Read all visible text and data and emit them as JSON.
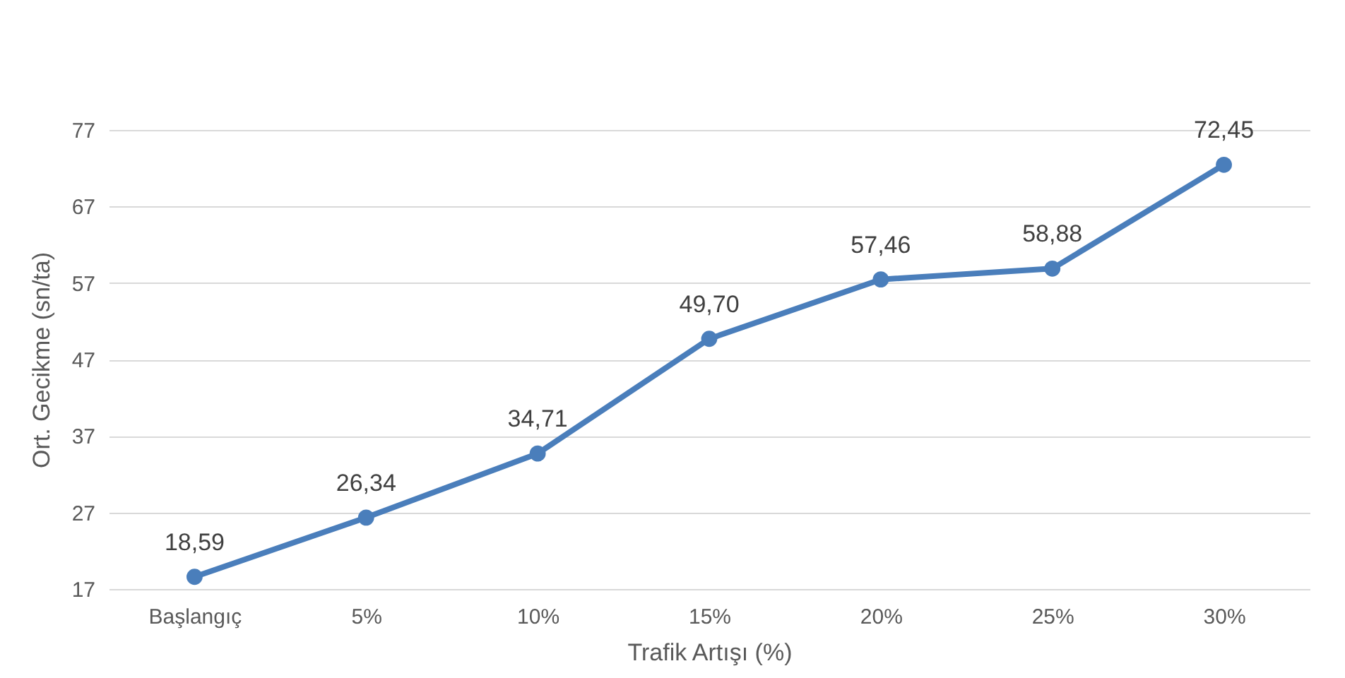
{
  "chart_data": {
    "type": "line",
    "xlabel": "Trafik Artışı (%)",
    "ylabel": "Ort. Gecikme (sn/ta)",
    "categories": [
      "Başlangıç",
      "5%",
      "10%",
      "15%",
      "20%",
      "25%",
      "30%"
    ],
    "series": [
      {
        "color": "#4a7ebb",
        "values": [
          18.59,
          26.34,
          34.71,
          49.7,
          57.46,
          58.88,
          72.45
        ],
        "value_labels": [
          "18,59",
          "26,34",
          "34,71",
          "49,70",
          "57,46",
          "58,88",
          "72,45"
        ]
      }
    ],
    "ylim": [
      17,
      77
    ],
    "yticks": [
      17,
      27,
      37,
      47,
      57,
      67,
      77
    ],
    "grid": "y",
    "marker": "circle",
    "line_style": "solid"
  }
}
